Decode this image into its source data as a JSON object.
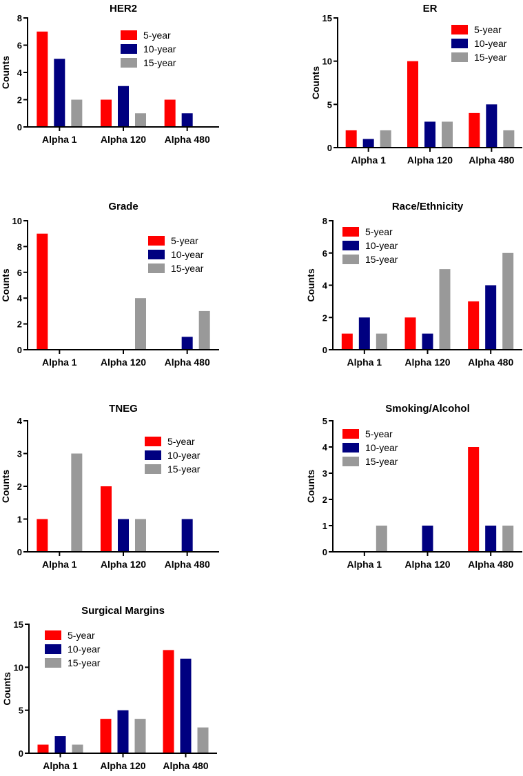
{
  "series_names": [
    "5-year",
    "10-year",
    "15-year"
  ],
  "colors": {
    "5-year": "#ff0000",
    "10-year": "#000080",
    "15-year": "#999999"
  },
  "chart_data": [
    {
      "type": "bar",
      "title": "HER2",
      "ylabel": "Counts",
      "categories": [
        "Alpha 1",
        "Alpha 120",
        "Alpha 480"
      ],
      "ylim": [
        0,
        8
      ],
      "yticks": [
        0,
        2,
        4,
        6,
        8
      ],
      "legend": "top-right",
      "series": [
        {
          "name": "5-year",
          "values": [
            7,
            2,
            2
          ]
        },
        {
          "name": "10-year",
          "values": [
            5,
            3,
            1
          ]
        },
        {
          "name": "15-year",
          "values": [
            2,
            1,
            0
          ]
        }
      ]
    },
    {
      "type": "bar",
      "title": "ER",
      "ylabel": "Counts",
      "categories": [
        "Alpha 1",
        "Alpha 120",
        "Alpha 480"
      ],
      "ylim": [
        0,
        15
      ],
      "yticks": [
        0,
        5,
        10,
        15
      ],
      "legend": "top-right",
      "series": [
        {
          "name": "5-year",
          "values": [
            2,
            10,
            4
          ]
        },
        {
          "name": "10-year",
          "values": [
            1,
            3,
            5
          ]
        },
        {
          "name": "15-year",
          "values": [
            2,
            3,
            2
          ]
        }
      ]
    },
    {
      "type": "bar",
      "title": "Grade",
      "ylabel": "Counts",
      "categories": [
        "Alpha 1",
        "Alpha 120",
        "Alpha 480"
      ],
      "ylim": [
        0,
        10
      ],
      "yticks": [
        0,
        2,
        4,
        6,
        8,
        10
      ],
      "legend": "top-right",
      "series": [
        {
          "name": "5-year",
          "values": [
            9,
            0,
            0
          ]
        },
        {
          "name": "10-year",
          "values": [
            0,
            0,
            1
          ]
        },
        {
          "name": "15-year",
          "values": [
            0,
            4,
            3
          ]
        }
      ]
    },
    {
      "type": "bar",
      "title": "Race/Ethnicity",
      "ylabel": "Counts",
      "categories": [
        "Alpha 1",
        "Alpha 120",
        "Alpha 480"
      ],
      "ylim": [
        0,
        8
      ],
      "yticks": [
        0,
        2,
        4,
        6,
        8
      ],
      "legend": "top-left",
      "series": [
        {
          "name": "5-year",
          "values": [
            1,
            2,
            3
          ]
        },
        {
          "name": "10-year",
          "values": [
            2,
            1,
            4
          ]
        },
        {
          "name": "15-year",
          "values": [
            1,
            5,
            6
          ]
        }
      ]
    },
    {
      "type": "bar",
      "title": "TNEG",
      "ylabel": "Counts",
      "categories": [
        "Alpha 1",
        "Alpha 120",
        "Alpha 480"
      ],
      "ylim": [
        0,
        4
      ],
      "yticks": [
        0,
        1,
        2,
        3,
        4
      ],
      "legend": "top-right",
      "series": [
        {
          "name": "5-year",
          "values": [
            1,
            2,
            0
          ]
        },
        {
          "name": "10-year",
          "values": [
            0,
            1,
            1
          ]
        },
        {
          "name": "15-year",
          "values": [
            3,
            1,
            0
          ]
        }
      ]
    },
    {
      "type": "bar",
      "title": "Smoking/Alcohol",
      "ylabel": "Counts",
      "categories": [
        "Alpha 1",
        "Alpha 120",
        "Alpha 480"
      ],
      "ylim": [
        0,
        5
      ],
      "yticks": [
        0,
        1,
        2,
        3,
        4,
        5
      ],
      "legend": "top-left",
      "series": [
        {
          "name": "5-year",
          "values": [
            0,
            0,
            4
          ]
        },
        {
          "name": "10-year",
          "values": [
            0,
            1,
            1
          ]
        },
        {
          "name": "15-year",
          "values": [
            1,
            0,
            1
          ]
        }
      ]
    },
    {
      "type": "bar",
      "title": "Surgical Margins",
      "ylabel": "Counts",
      "categories": [
        "Alpha 1",
        "Alpha 120",
        "Alpha 480"
      ],
      "ylim": [
        0,
        15
      ],
      "yticks": [
        0,
        5,
        10,
        15
      ],
      "legend": "top-left",
      "series": [
        {
          "name": "5-year",
          "values": [
            1,
            4,
            12
          ]
        },
        {
          "name": "10-year",
          "values": [
            2,
            5,
            11
          ]
        },
        {
          "name": "15-year",
          "values": [
            1,
            4,
            3
          ]
        }
      ]
    }
  ]
}
